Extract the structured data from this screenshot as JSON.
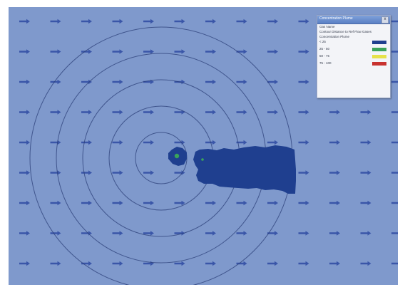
{
  "legend": {
    "title": "Concentration Plume",
    "close_glyph": "x",
    "lines": [
      "Gas Name",
      "Contour Distance to Ref Flow Gases",
      "Concentration Plume"
    ],
    "entries": [
      {
        "label": "< 25",
        "color": "#1f3f8f"
      },
      {
        "label": "25 - 50",
        "color": "#3aa35a"
      },
      {
        "label": "50 - 75",
        "color": "#e6e24a"
      },
      {
        "label": "75 - 100",
        "color": "#c8322f"
      }
    ]
  },
  "map": {
    "background_color": "#7f99cc",
    "ring_color": "#2b3f78",
    "arrow_color": "#3a56a8",
    "plume_color": "#1f3f8f",
    "source_color": "#3aa35a",
    "wind_direction": "east",
    "ring_count": 5
  }
}
